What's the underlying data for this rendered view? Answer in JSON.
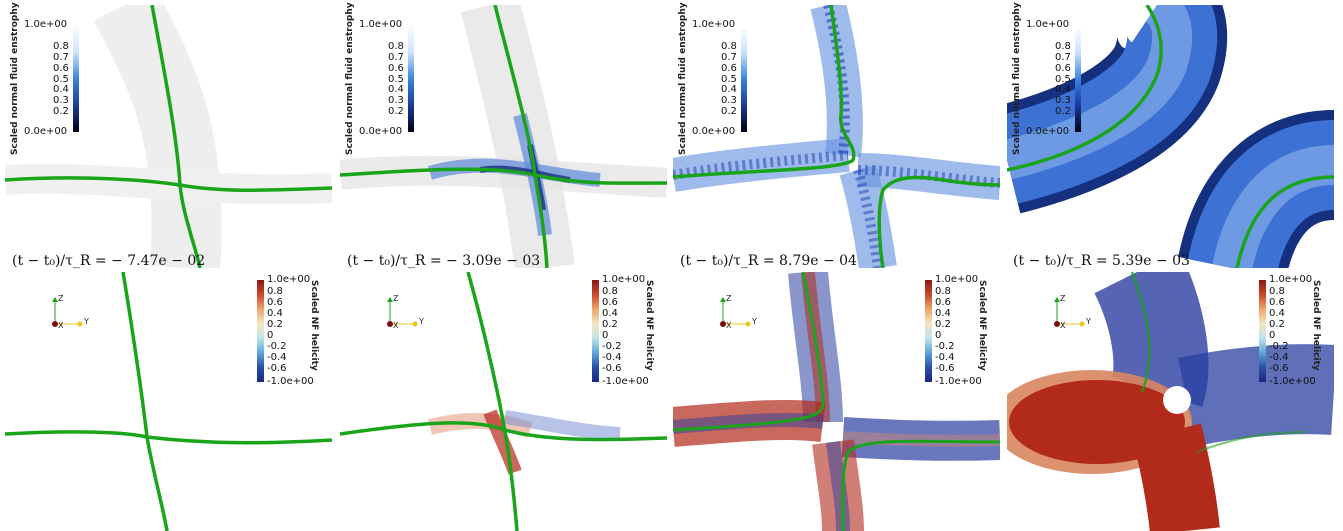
{
  "enstrophy_colorbar": {
    "title": "Scaled normal fluid enstrophy",
    "ticks": [
      "1.0e+00",
      "0.8",
      "0.7",
      "0.6",
      "0.5",
      "0.4",
      "0.3",
      "0.2",
      "0.0e+00"
    ]
  },
  "helicity_colorbar": {
    "title": "Scaled NF helicity",
    "ticks": [
      "1.0e+00",
      "0.8",
      "0.6",
      "0.4",
      "0.2",
      "0",
      "-0.2",
      "-0.4",
      "-0.6",
      "-1.0e+00"
    ]
  },
  "axes_labels": {
    "z": "Z",
    "x": "X",
    "y": "Y"
  },
  "time_labels": [
    "(t − t₀)/τ_R = − 7.47e − 02",
    "(t − t₀)/τ_R = − 3.09e − 03",
    "(t − t₀)/τ_R = 8.79e − 04",
    "(t − t₀)/τ_R = 5.39e − 03"
  ],
  "colors": {
    "vortex_line": "#1aa41a",
    "enstrophy_low": "#000010",
    "enstrophy_mid": "#1a55d0",
    "enstrophy_high": "#e6f2ff",
    "helicity_positive": "#b22a1a",
    "helicity_negative": "#2a3fa0"
  }
}
